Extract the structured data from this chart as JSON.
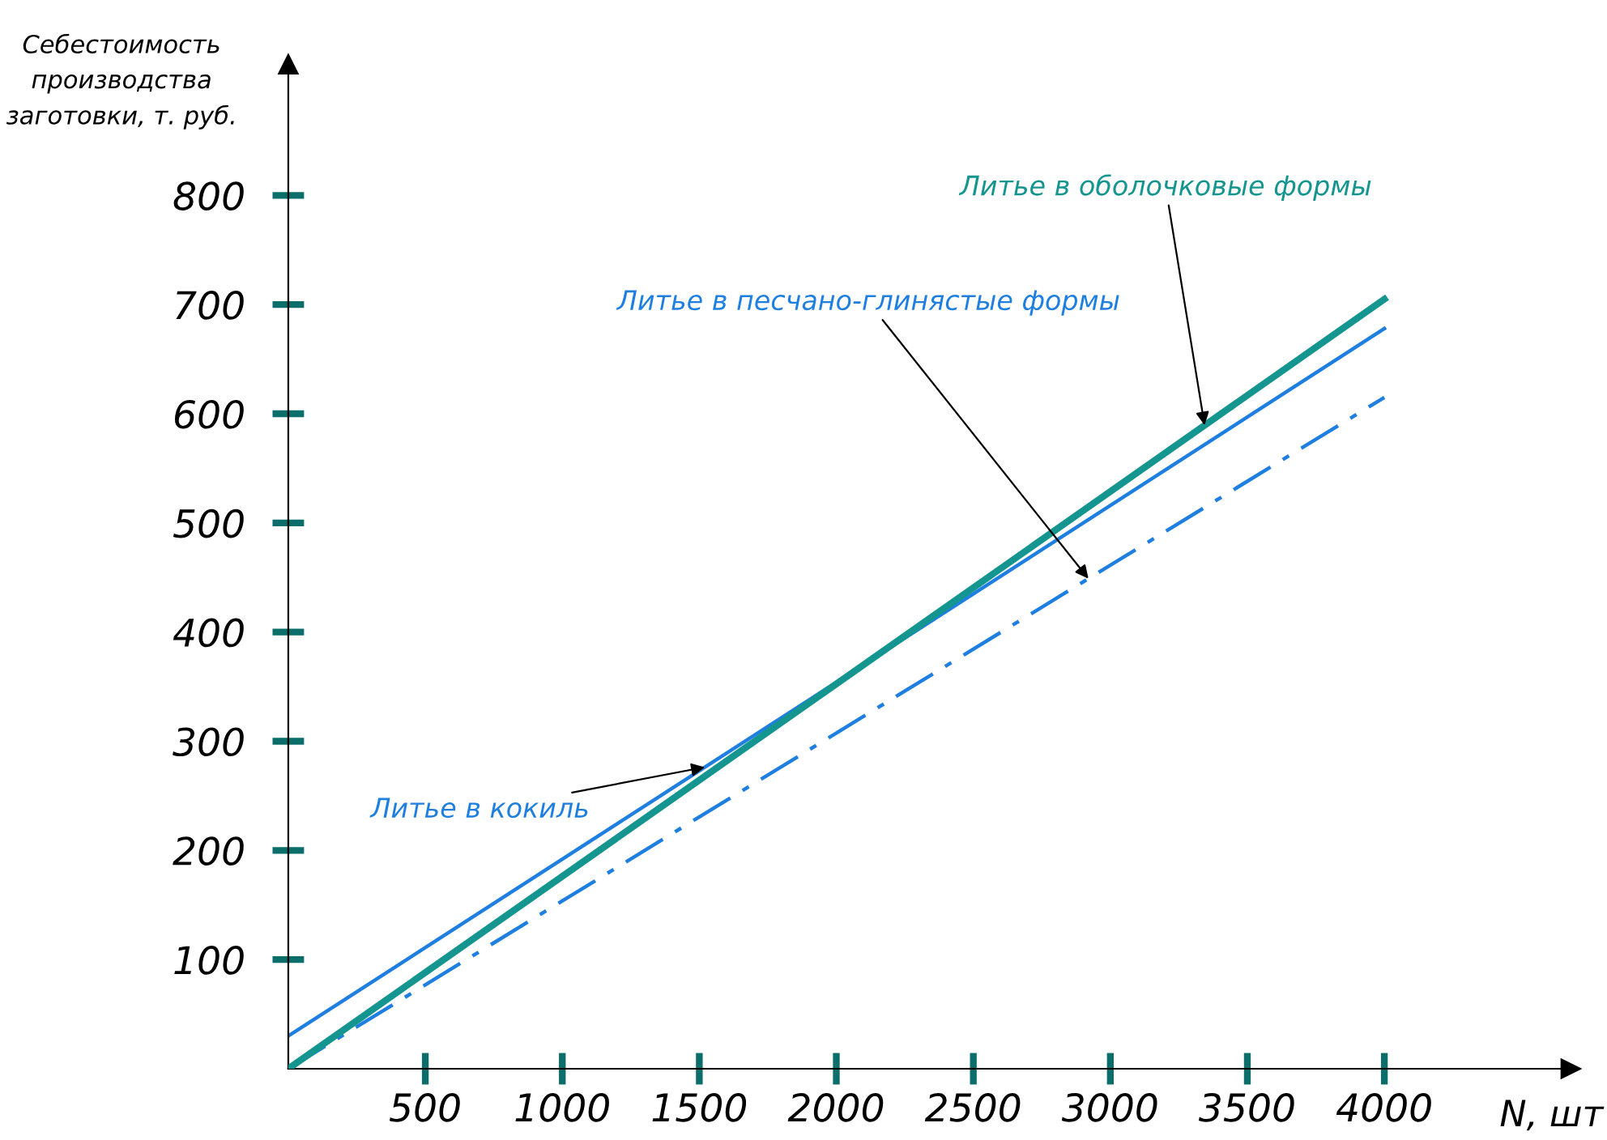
{
  "chart_data": {
    "type": "line",
    "xlabel": "N, шт",
    "ylabel": "Себестоимость\nпроизводства\nзаготовки, т. руб.",
    "x": [
      0,
      4000
    ],
    "series": [
      {
        "name": "Литье в оболочковые формы",
        "color": "#14958f",
        "values": [
          0,
          705
        ],
        "line_style": "solid"
      },
      {
        "name": "Литье в песчано-глинястые формы",
        "color": "#1e7fe0",
        "values": [
          0,
          615
        ],
        "line_style": "dashdot"
      },
      {
        "name": "Литье в кокиль",
        "color": "#1e7fe0",
        "values": [
          30,
          678
        ],
        "line_style": "solid"
      }
    ],
    "xlim": [
      0,
      4680
    ],
    "ylim": [
      0,
      920
    ],
    "xticks": [
      500,
      1000,
      1500,
      2000,
      2500,
      3000,
      3500,
      4000
    ],
    "yticks": [
      100,
      200,
      300,
      400,
      500,
      600,
      700,
      800
    ],
    "grid": false,
    "legend": false,
    "marker": "none"
  }
}
